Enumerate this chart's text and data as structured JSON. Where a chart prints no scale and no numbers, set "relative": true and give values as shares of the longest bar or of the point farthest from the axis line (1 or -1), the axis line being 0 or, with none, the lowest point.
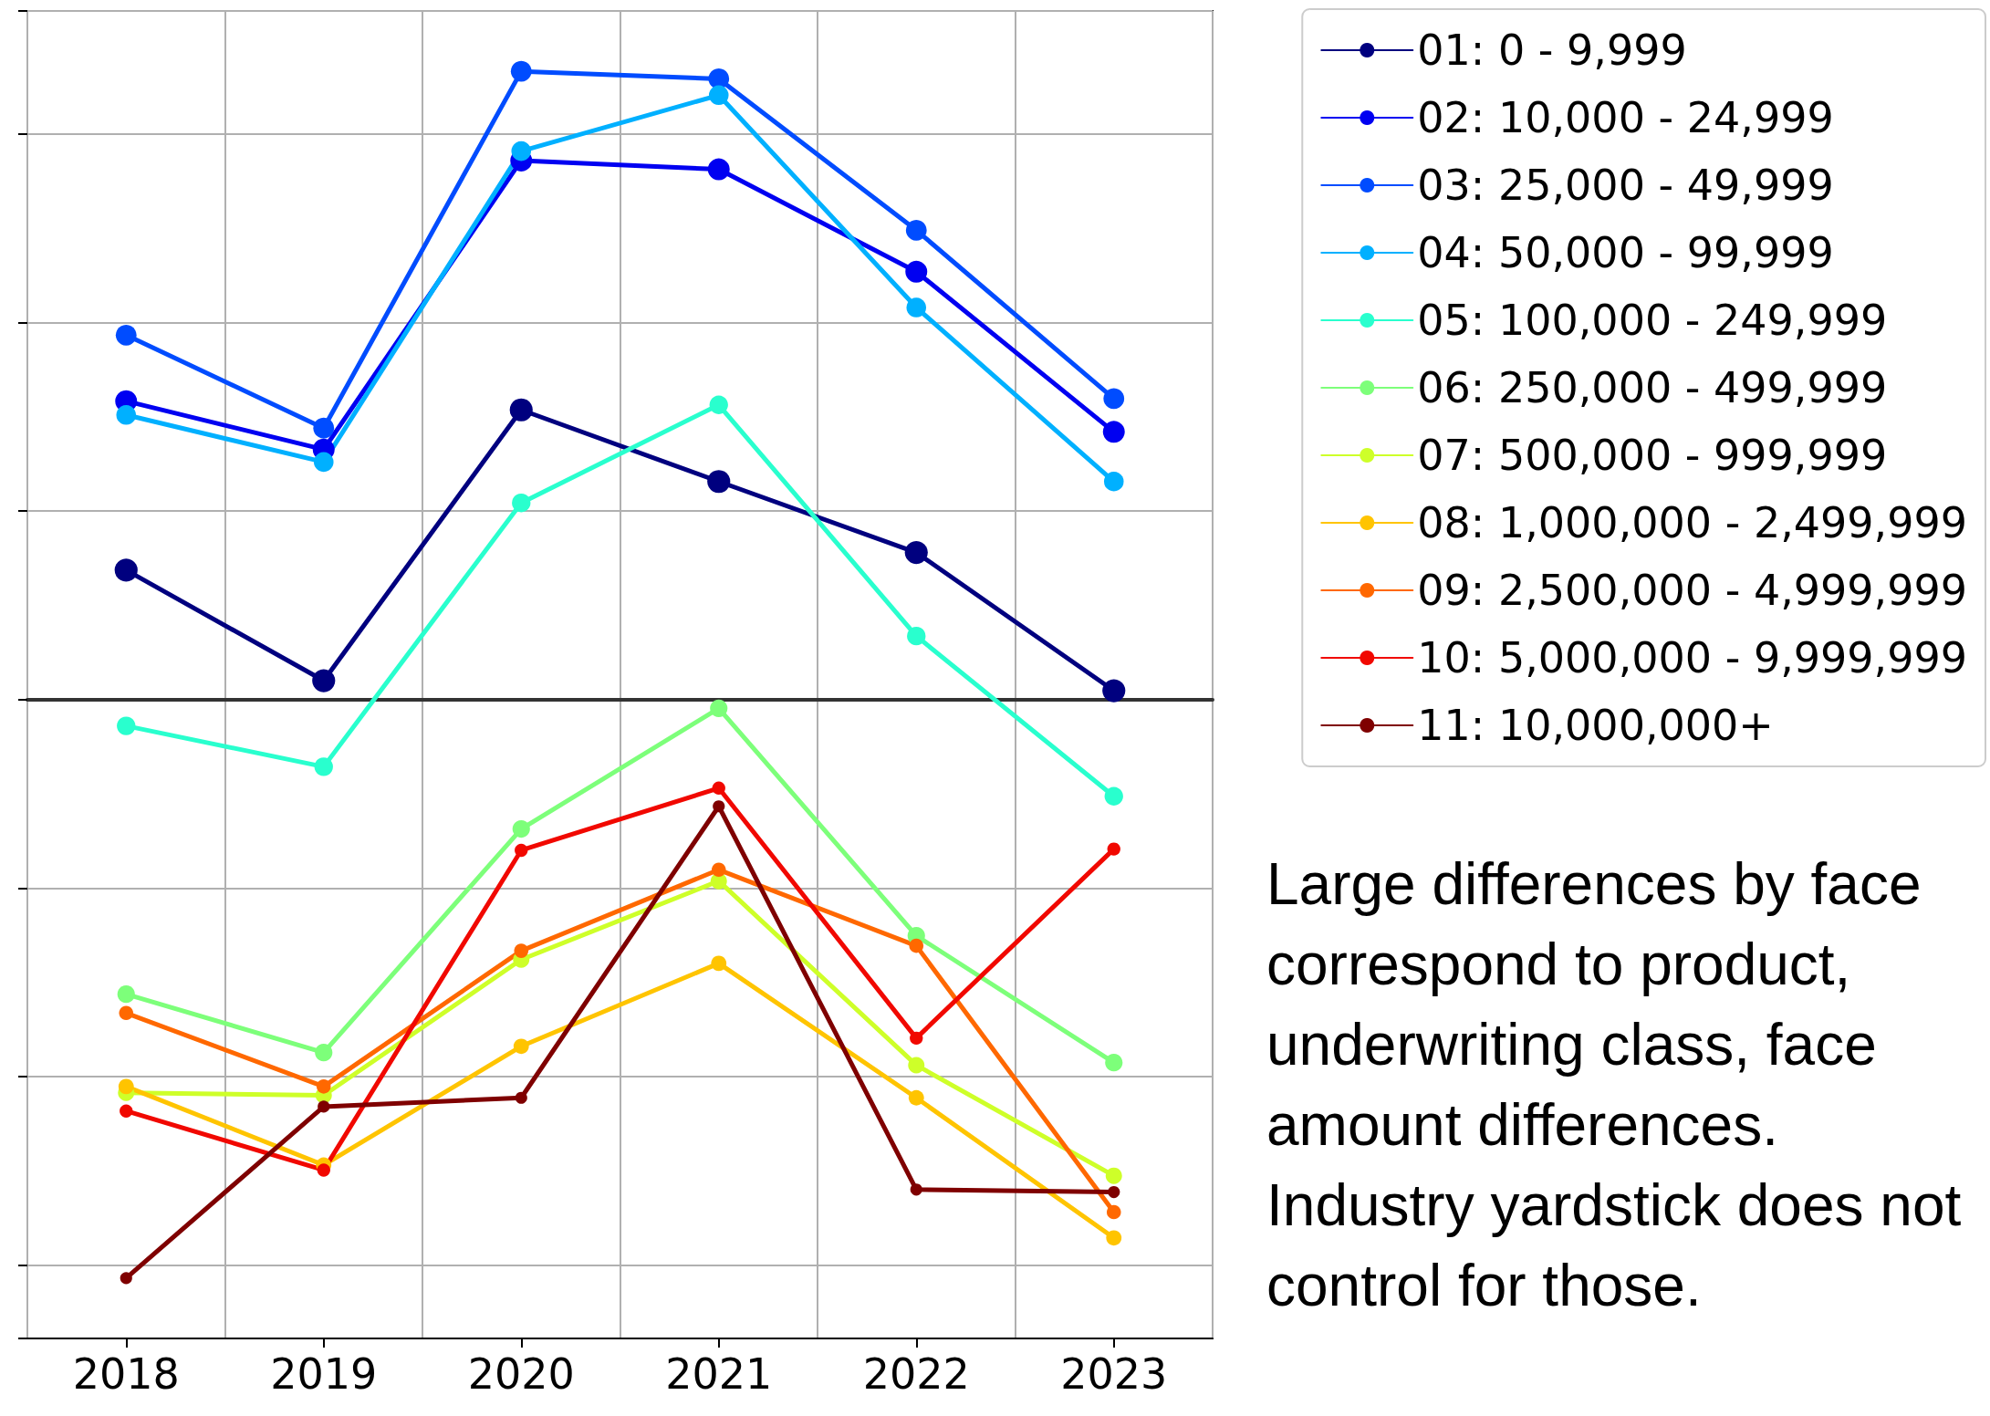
{
  "chart_data": {
    "type": "line",
    "relative": true,
    "categories": [
      "2018",
      "2019",
      "2020",
      "2021",
      "2022",
      "2023"
    ],
    "series": [
      {
        "name": "01: 0 - 9,999",
        "color": "#00007f",
        "values": [
          0.206,
          0.03,
          0.461,
          0.347,
          0.234,
          0.014
        ]
      },
      {
        "name": "02: 10,000 - 24,999",
        "color": "#0000f1",
        "values": [
          0.475,
          0.398,
          0.858,
          0.844,
          0.681,
          0.426
        ]
      },
      {
        "name": "03: 25,000 - 49,999",
        "color": "#004cff",
        "values": [
          0.58,
          0.432,
          1,
          0.988,
          0.747,
          0.479
        ]
      },
      {
        "name": "04: 50,000 - 99,999",
        "color": "#00b0ff",
        "values": [
          0.453,
          0.378,
          0.873,
          0.962,
          0.624,
          0.347
        ]
      },
      {
        "name": "05: 100,000 - 249,999",
        "color": "#29ffce",
        "values": [
          -0.042,
          -0.107,
          0.313,
          0.469,
          0.101,
          -0.154
        ]
      },
      {
        "name": "06: 250,000 - 499,999",
        "color": "#7dff7a",
        "values": [
          -0.469,
          -0.562,
          -0.206,
          -0.014,
          -0.376,
          -0.578
        ]
      },
      {
        "name": "07: 500,000 - 999,999",
        "color": "#ceff29",
        "values": [
          -0.626,
          -0.63,
          -0.414,
          -0.289,
          -0.582,
          -0.758
        ]
      },
      {
        "name": "08: 1,000,000 - 2,499,999",
        "color": "#ffc400",
        "values": [
          -0.616,
          -0.741,
          -0.552,
          -0.42,
          -0.634,
          -0.857
        ]
      },
      {
        "name": "09: 2,500,000 - 4,999,999",
        "color": "#ff6800",
        "values": [
          -0.499,
          -0.616,
          -0.4,
          -0.271,
          -0.392,
          -0.816
        ]
      },
      {
        "name": "10: 5,000,000 - 9,999,999",
        "color": "#f10800",
        "values": [
          -0.655,
          -0.749,
          -0.24,
          -0.141,
          -0.539,
          -0.238
        ]
      },
      {
        "name": "11: 10,000,000+",
        "color": "#7f0000",
        "values": [
          -0.921,
          -0.648,
          -0.634,
          -0.17,
          -0.78,
          -0.784
        ]
      }
    ],
    "annotations": [
      "Large differences by face correspond to product, underwriting class, face amount differences. Industry yardstick does not control for those."
    ],
    "grid": true,
    "legend": "right",
    "marker": "circle",
    "line_style": "solid"
  }
}
